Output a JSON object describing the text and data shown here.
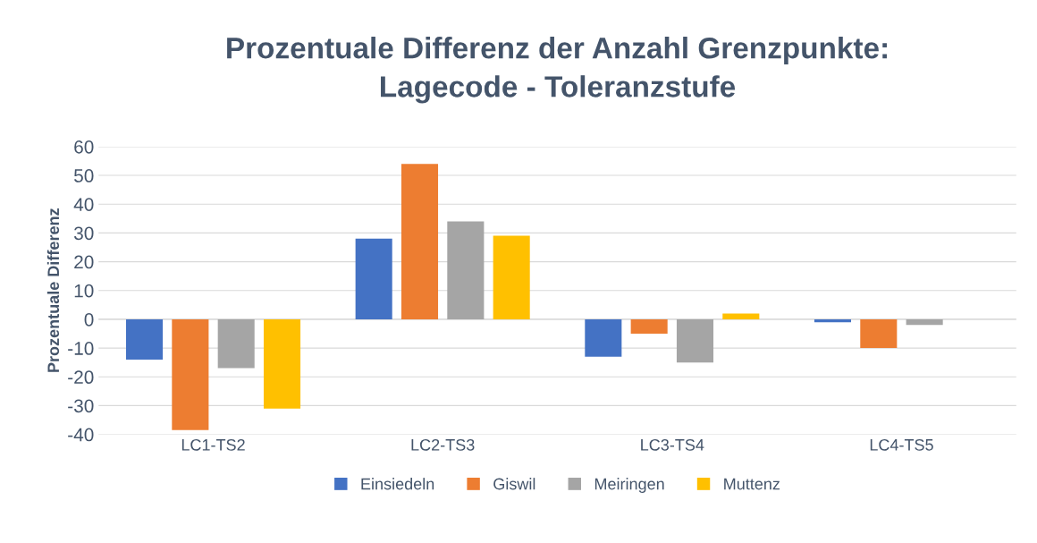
{
  "chart_data": {
    "type": "bar",
    "title": "Prozentuale Differenz der Anzahl Grenzpunkte:\nLagecode - Toleranzstufe",
    "ylabel": "Prozentuale Differenz",
    "categories": [
      "LC1-TS2",
      "LC2-TS3",
      "LC3-TS4",
      "LC4-TS5"
    ],
    "series": [
      {
        "name": "Einsiedeln",
        "color": "#4472c4",
        "values": [
          -14,
          28,
          -13,
          -1
        ]
      },
      {
        "name": "Giswil",
        "color": "#ed7d31",
        "values": [
          -38.5,
          54,
          -5,
          -10
        ]
      },
      {
        "name": "Meiringen",
        "color": "#a5a5a5",
        "values": [
          -17,
          34,
          -15,
          -2
        ]
      },
      {
        "name": "Muttenz",
        "color": "#ffc000",
        "values": [
          -31,
          29,
          2,
          0
        ]
      }
    ],
    "ylim": [
      -40,
      60
    ],
    "yticks": [
      -40,
      -30,
      -20,
      -10,
      0,
      10,
      20,
      30,
      40,
      50,
      60
    ],
    "grid": "y",
    "legend": "bottom"
  }
}
